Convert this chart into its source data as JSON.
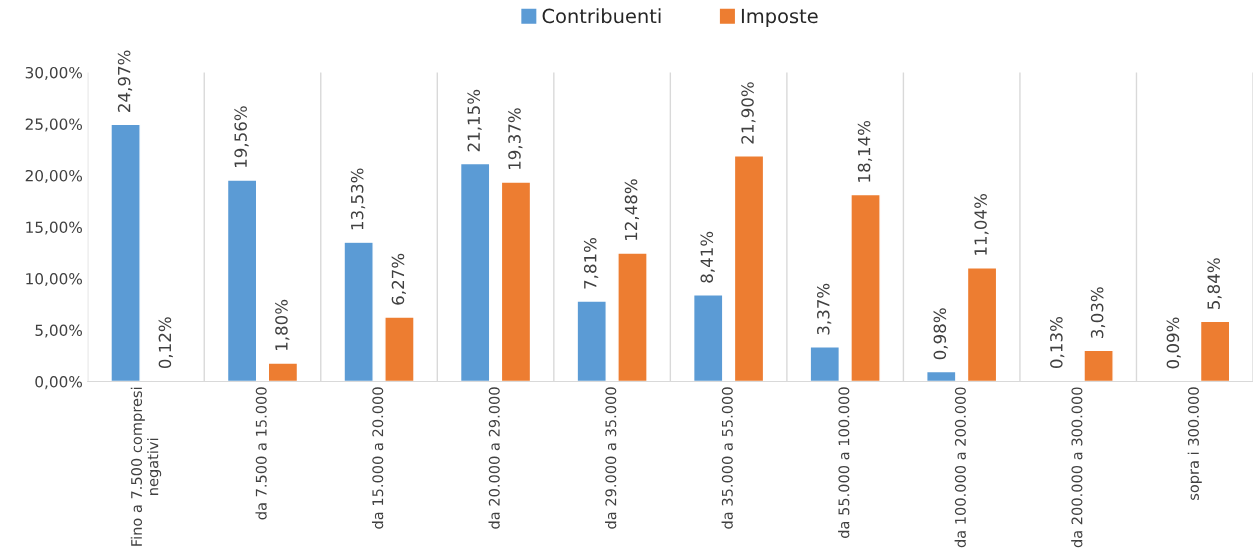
{
  "chart_data": {
    "type": "bar",
    "categories": [
      "Fino a 7.500 compresi\nnegativi",
      "da 7.500 a 15.000",
      "da 15.000 a 20.000",
      "da 20.000 a 29.000",
      "da 29.000 a 35.000",
      "da 35.000 a 55.000",
      "da 55.000 a 100.000",
      "da 100.000 a 200.000",
      "da 200.000 a 300.000",
      "sopra i 300.000"
    ],
    "series": [
      {
        "name": "Contribuenti",
        "color": "#5b9bd5",
        "values": [
          24.97,
          19.56,
          13.53,
          21.15,
          7.81,
          8.41,
          3.37,
          0.98,
          0.13,
          0.09
        ],
        "value_labels": [
          "24,97%",
          "19,56%",
          "13,53%",
          "21,15%",
          "7,81%",
          "8,41%",
          "3,37%",
          "0,98%",
          "0,13%",
          "0,09%"
        ]
      },
      {
        "name": "Imposte",
        "color": "#ed7d31",
        "values": [
          0.12,
          1.8,
          6.27,
          19.37,
          12.48,
          21.9,
          18.14,
          11.04,
          3.03,
          5.84
        ],
        "value_labels": [
          "0,12%",
          "1,80%",
          "6,27%",
          "19,37%",
          "12,48%",
          "21,90%",
          "18,14%",
          "11,04%",
          "3,03%",
          "5,84%"
        ]
      }
    ],
    "ylim": [
      0,
      30
    ],
    "yticks": [
      {
        "value": 0,
        "label": "0,00%"
      },
      {
        "value": 5,
        "label": "5,00%"
      },
      {
        "value": 10,
        "label": "10,00%"
      },
      {
        "value": 15,
        "label": "15,00%"
      },
      {
        "value": 20,
        "label": "20,00%"
      },
      {
        "value": 25,
        "label": "25,00%"
      },
      {
        "value": 30,
        "label": "30,00%"
      }
    ],
    "grid": "x",
    "legend": "top"
  }
}
